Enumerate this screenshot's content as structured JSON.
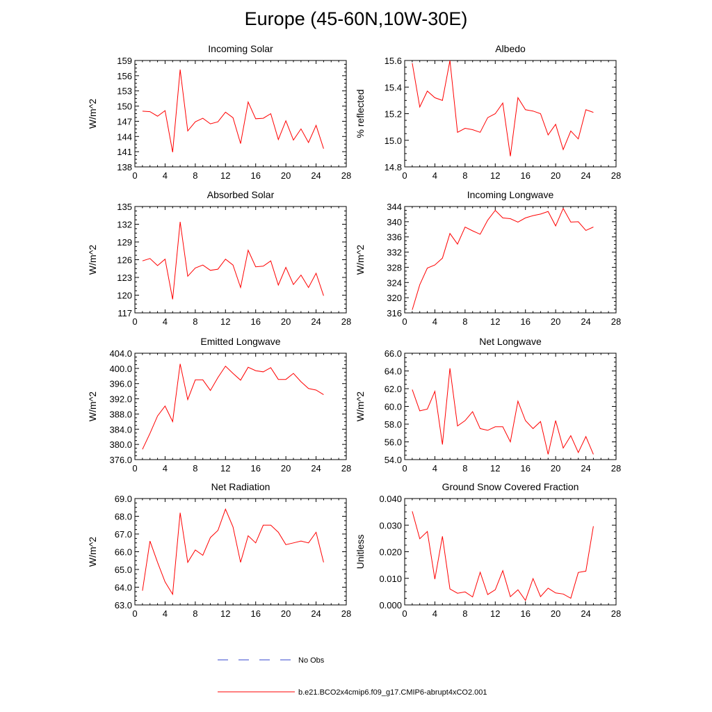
{
  "page_title": "Europe (45-60N,10W-30E)",
  "legend": {
    "obs_label": "No Obs",
    "model_label": "b.e21.BCO2x4cmip6.f09_g17.CMIP6-abrupt4xCO2.001",
    "obs_color": "#3344cc",
    "model_color": "#ff0000"
  },
  "chart_data": [
    {
      "type": "line",
      "title": "Incoming Solar",
      "ylabel": "W/m^2",
      "xlabel": "",
      "xlim": [
        0,
        28
      ],
      "xticks": [
        0,
        4,
        8,
        12,
        16,
        20,
        24,
        28
      ],
      "ylim": [
        138,
        159
      ],
      "yticks": [
        138,
        141,
        144,
        147,
        150,
        153,
        156,
        159
      ],
      "ytick_labels": [
        "138",
        "141",
        "144",
        "147",
        "150",
        "153",
        "156",
        "159"
      ],
      "series": [
        {
          "name": "b.e21.BCO2x4cmip6.f09_g17.CMIP6-abrupt4xCO2.001",
          "x": [
            1,
            2,
            3,
            4,
            5,
            6,
            7,
            8,
            9,
            10,
            11,
            12,
            13,
            14,
            15,
            16,
            17,
            18,
            19,
            20,
            21,
            22,
            23,
            24,
            25
          ],
          "values": [
            149.0,
            148.9,
            148.0,
            149.1,
            140.9,
            157.2,
            145.1,
            146.9,
            147.6,
            146.5,
            146.9,
            148.8,
            147.7,
            142.6,
            150.8,
            147.5,
            147.6,
            148.5,
            143.4,
            147.1,
            143.3,
            145.5,
            142.8,
            146.2,
            141.6
          ]
        }
      ]
    },
    {
      "type": "line",
      "title": "Albedo",
      "ylabel": "% reflected",
      "xlabel": "",
      "xlim": [
        0,
        28
      ],
      "xticks": [
        0,
        4,
        8,
        12,
        16,
        20,
        24,
        28
      ],
      "ylim": [
        14.8,
        15.6
      ],
      "yticks": [
        14.8,
        15.0,
        15.2,
        15.4,
        15.6
      ],
      "ytick_labels": [
        "14.8",
        "15.0",
        "15.2",
        "15.4",
        "15.6"
      ],
      "series": [
        {
          "name": "b.e21.BCO2x4cmip6.f09_g17.CMIP6-abrupt4xCO2.001",
          "x": [
            1,
            2,
            3,
            4,
            5,
            6,
            7,
            8,
            9,
            10,
            11,
            12,
            13,
            14,
            15,
            16,
            17,
            18,
            19,
            20,
            21,
            22,
            23,
            24,
            25
          ],
          "values": [
            15.58,
            15.25,
            15.37,
            15.32,
            15.3,
            15.6,
            15.06,
            15.09,
            15.08,
            15.06,
            15.17,
            15.2,
            15.28,
            14.88,
            15.32,
            15.23,
            15.22,
            15.2,
            15.04,
            15.12,
            14.93,
            15.07,
            15.01,
            15.23,
            15.21
          ]
        }
      ]
    },
    {
      "type": "line",
      "title": "Absorbed Solar",
      "ylabel": "W/m^2",
      "xlabel": "",
      "xlim": [
        0,
        28
      ],
      "xticks": [
        0,
        4,
        8,
        12,
        16,
        20,
        24,
        28
      ],
      "ylim": [
        117,
        135
      ],
      "yticks": [
        117,
        120,
        123,
        126,
        129,
        132,
        135
      ],
      "ytick_labels": [
        "117",
        "120",
        "123",
        "126",
        "129",
        "132",
        "135"
      ],
      "series": [
        {
          "name": "b.e21.BCO2x4cmip6.f09_g17.CMIP6-abrupt4xCO2.001",
          "x": [
            1,
            2,
            3,
            4,
            5,
            6,
            7,
            8,
            9,
            10,
            11,
            12,
            13,
            14,
            15,
            16,
            17,
            18,
            19,
            20,
            21,
            22,
            23,
            24,
            25
          ],
          "values": [
            125.8,
            126.2,
            125.0,
            126.1,
            119.3,
            132.4,
            123.2,
            124.6,
            125.1,
            124.2,
            124.4,
            126.1,
            125.1,
            121.3,
            127.6,
            124.8,
            124.9,
            125.8,
            121.7,
            124.7,
            121.8,
            123.4,
            121.3,
            123.7,
            119.9
          ]
        }
      ]
    },
    {
      "type": "line",
      "title": "Incoming Longwave",
      "ylabel": "W/m^2",
      "xlabel": "",
      "xlim": [
        0,
        28
      ],
      "xticks": [
        0,
        4,
        8,
        12,
        16,
        20,
        24,
        28
      ],
      "ylim": [
        316,
        344
      ],
      "yticks": [
        316,
        320,
        324,
        328,
        332,
        336,
        340,
        344
      ],
      "ytick_labels": [
        "316",
        "320",
        "324",
        "328",
        "332",
        "336",
        "340",
        "344"
      ],
      "series": [
        {
          "name": "b.e21.BCO2x4cmip6.f09_g17.CMIP6-abrupt4xCO2.001",
          "x": [
            1,
            2,
            3,
            4,
            5,
            6,
            7,
            8,
            9,
            10,
            11,
            12,
            13,
            14,
            15,
            16,
            17,
            18,
            19,
            20,
            21,
            22,
            23,
            24,
            25
          ],
          "values": [
            316.8,
            323.4,
            327.8,
            328.6,
            330.4,
            336.9,
            334.1,
            338.6,
            337.6,
            336.7,
            340.4,
            343.0,
            341.0,
            340.8,
            339.9,
            341.0,
            341.6,
            342.0,
            342.7,
            338.9,
            343.5,
            339.9,
            340.0,
            337.7,
            338.6
          ]
        }
      ]
    },
    {
      "type": "line",
      "title": "Emitted Longwave",
      "ylabel": "W/m^2",
      "xlabel": "",
      "xlim": [
        0,
        28
      ],
      "xticks": [
        0,
        4,
        8,
        12,
        16,
        20,
        24,
        28
      ],
      "ylim": [
        376,
        404
      ],
      "yticks": [
        376,
        380,
        384,
        388,
        392,
        396,
        400,
        404
      ],
      "ytick_labels": [
        "376.0",
        "380.0",
        "384.0",
        "388.0",
        "392.0",
        "396.0",
        "400.0",
        "404.0"
      ],
      "series": [
        {
          "name": "b.e21.BCO2x4cmip6.f09_g17.CMIP6-abrupt4xCO2.001",
          "x": [
            1,
            2,
            3,
            4,
            5,
            6,
            7,
            8,
            9,
            10,
            11,
            12,
            13,
            14,
            15,
            16,
            17,
            18,
            19,
            20,
            21,
            22,
            23,
            24,
            25
          ],
          "values": [
            378.7,
            382.9,
            387.5,
            390.1,
            386.0,
            401.2,
            391.8,
            397.0,
            397.0,
            394.2,
            397.6,
            400.6,
            398.7,
            396.9,
            400.3,
            399.4,
            399.1,
            400.2,
            397.1,
            397.1,
            398.7,
            396.5,
            394.7,
            394.3,
            393.1
          ]
        }
      ]
    },
    {
      "type": "line",
      "title": "Net Longwave",
      "ylabel": "W/m^2",
      "xlabel": "",
      "xlim": [
        0,
        28
      ],
      "xticks": [
        0,
        4,
        8,
        12,
        16,
        20,
        24,
        28
      ],
      "ylim": [
        54,
        66
      ],
      "yticks": [
        54,
        56,
        58,
        60,
        62,
        64,
        66
      ],
      "ytick_labels": [
        "54.0",
        "56.0",
        "58.0",
        "60.0",
        "62.0",
        "64.0",
        "66.0"
      ],
      "series": [
        {
          "name": "b.e21.BCO2x4cmip6.f09_g17.CMIP6-abrupt4xCO2.001",
          "x": [
            1,
            2,
            3,
            4,
            5,
            6,
            7,
            8,
            9,
            10,
            11,
            12,
            13,
            14,
            15,
            16,
            17,
            18,
            19,
            20,
            21,
            22,
            23,
            24,
            25
          ],
          "values": [
            61.9,
            59.5,
            59.7,
            61.7,
            55.7,
            64.3,
            57.8,
            58.4,
            59.4,
            57.5,
            57.3,
            57.7,
            57.7,
            56.0,
            60.6,
            58.4,
            57.5,
            58.3,
            54.6,
            58.4,
            55.3,
            56.7,
            54.8,
            56.6,
            54.6
          ]
        }
      ]
    },
    {
      "type": "line",
      "title": "Net Radiation",
      "ylabel": "W/m^2",
      "xlabel": "",
      "xlim": [
        0,
        28
      ],
      "xticks": [
        0,
        4,
        8,
        12,
        16,
        20,
        24,
        28
      ],
      "ylim": [
        63,
        69
      ],
      "yticks": [
        63,
        64,
        65,
        66,
        67,
        68,
        69
      ],
      "ytick_labels": [
        "63.0",
        "64.0",
        "65.0",
        "66.0",
        "67.0",
        "68.0",
        "69.0"
      ],
      "series": [
        {
          "name": "b.e21.BCO2x4cmip6.f09_g17.CMIP6-abrupt4xCO2.001",
          "x": [
            1,
            2,
            3,
            4,
            5,
            6,
            7,
            8,
            9,
            10,
            11,
            12,
            13,
            14,
            15,
            16,
            17,
            18,
            19,
            20,
            21,
            22,
            23,
            24,
            25
          ],
          "values": [
            63.8,
            66.6,
            65.4,
            64.3,
            63.6,
            68.2,
            65.4,
            66.1,
            65.8,
            66.8,
            67.2,
            68.4,
            67.4,
            65.4,
            66.9,
            66.5,
            67.5,
            67.5,
            67.1,
            66.4,
            66.5,
            66.6,
            66.5,
            67.1,
            65.4
          ]
        }
      ]
    },
    {
      "type": "line",
      "title": "Ground Snow Covered Fraction",
      "ylabel": "Unitless",
      "xlabel": "",
      "xlim": [
        0,
        28
      ],
      "xticks": [
        0,
        4,
        8,
        12,
        16,
        20,
        24,
        28
      ],
      "ylim": [
        0,
        0.04
      ],
      "yticks": [
        0,
        0.01,
        0.02,
        0.03,
        0.04
      ],
      "ytick_labels": [
        "0.000",
        "0.010",
        "0.020",
        "0.030",
        "0.040"
      ],
      "series": [
        {
          "name": "b.e21.BCO2x4cmip6.f09_g17.CMIP6-abrupt4xCO2.001",
          "x": [
            1,
            2,
            3,
            4,
            5,
            6,
            7,
            8,
            9,
            10,
            11,
            12,
            13,
            14,
            15,
            16,
            17,
            18,
            19,
            20,
            21,
            22,
            23,
            24,
            25
          ],
          "values": [
            0.0352,
            0.0249,
            0.0276,
            0.0097,
            0.0258,
            0.006,
            0.0044,
            0.0049,
            0.003,
            0.0123,
            0.0039,
            0.0057,
            0.0129,
            0.0031,
            0.0057,
            0.0017,
            0.0099,
            0.0031,
            0.0063,
            0.0045,
            0.0041,
            0.0025,
            0.0122,
            0.0127,
            0.0296
          ]
        }
      ]
    }
  ]
}
